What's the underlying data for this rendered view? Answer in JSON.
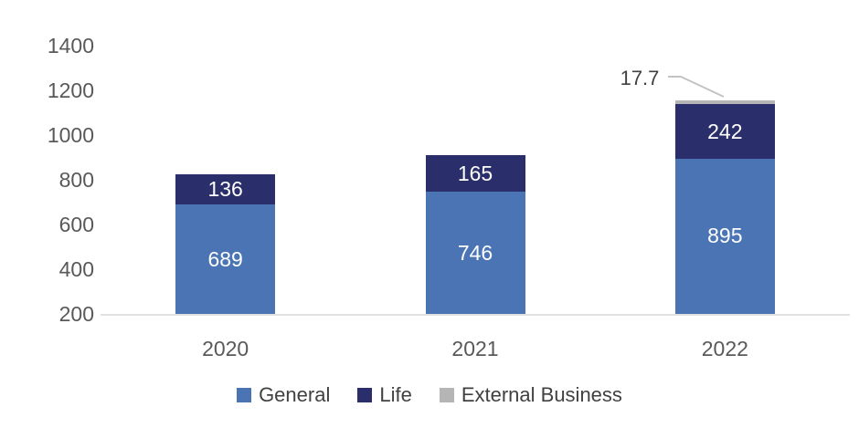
{
  "chart_data": {
    "type": "bar",
    "stacked": true,
    "title": "",
    "xlabel": "",
    "ylabel": "",
    "categories": [
      "2020",
      "2021",
      "2022"
    ],
    "series": [
      {
        "name": "General",
        "color": "#4A74B4",
        "values": [
          689,
          746,
          895
        ]
      },
      {
        "name": "Life",
        "color": "#2A2F6C",
        "values": [
          136,
          165,
          242
        ]
      },
      {
        "name": "External Business",
        "color": "#B5B5B5",
        "values": [
          0,
          0,
          17.7
        ]
      }
    ],
    "ylim": [
      200,
      1400
    ],
    "yticks": [
      200,
      400,
      600,
      800,
      1000,
      1200,
      1400
    ],
    "grid": false,
    "legend_position": "bottom",
    "annotation": {
      "text": "17.7",
      "series": "External Business",
      "category": "2022"
    },
    "style": {
      "background": "#FFFFFF",
      "axis_text_color": "#595959",
      "axis_line_color": "#E1E1E1",
      "bar_label_color": "#FFFFFF",
      "legend_text_color": "#414141",
      "annotation_color": "#414141",
      "callout_line_color": "#C3C3C3"
    }
  }
}
